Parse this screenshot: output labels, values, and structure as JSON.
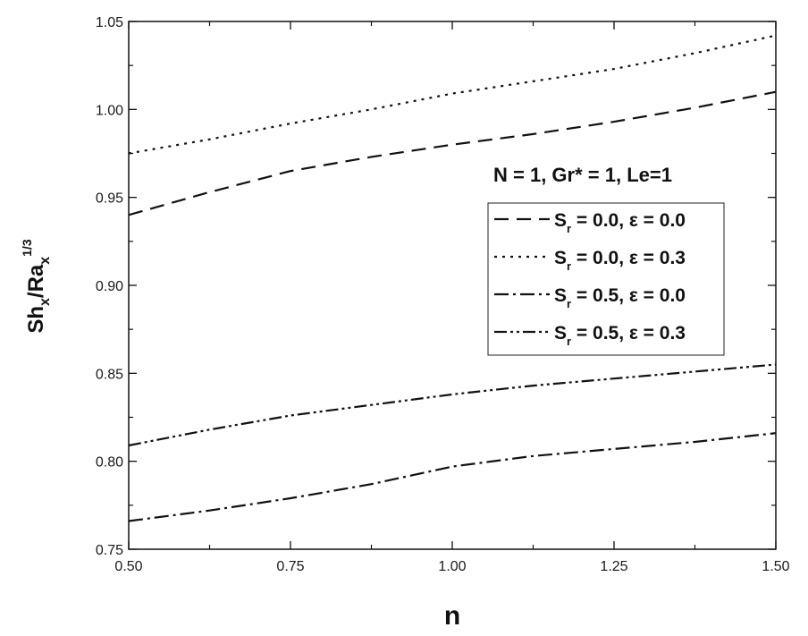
{
  "chart_data": {
    "type": "line",
    "title": "",
    "annotation": "N = 1, Gr* = 1, Le=1",
    "xlabel": "n",
    "ylabel": {
      "base1": "Sh",
      "sub1": "x",
      "slash": "/",
      "base2": "Ra",
      "sub2": "x",
      "sup2": "1/3"
    },
    "xlim": [
      0.5,
      1.5
    ],
    "ylim": [
      0.75,
      1.05
    ],
    "x_ticks": [
      "0.50",
      "0.75",
      "1.00",
      "1.25",
      "1.50"
    ],
    "y_ticks": [
      "0.75",
      "0.80",
      "0.85",
      "0.90",
      "0.95",
      "1.00",
      "1.05"
    ],
    "grid": false,
    "legend_position": "center-right",
    "x": [
      0.5,
      0.625,
      0.75,
      0.875,
      1.0,
      1.125,
      1.25,
      1.375,
      1.5
    ],
    "series": [
      {
        "name": {
          "a": "S",
          "sub": "r",
          "b": " = 0.0, ε = 0.0"
        },
        "style": "dash",
        "values": [
          0.94,
          0.953,
          0.965,
          0.973,
          0.98,
          0.986,
          0.993,
          1.001,
          1.01
        ]
      },
      {
        "name": {
          "a": "S",
          "sub": "r",
          "b": " = 0.0, ε = 0.3"
        },
        "style": "dot",
        "values": [
          0.975,
          0.983,
          0.992,
          1.0,
          1.009,
          1.016,
          1.023,
          1.032,
          1.042
        ]
      },
      {
        "name": {
          "a": "S",
          "sub": "r",
          "b": " = 0.5, ε = 0.0"
        },
        "style": "dash-dot",
        "values": [
          0.766,
          0.772,
          0.779,
          0.787,
          0.797,
          0.803,
          0.807,
          0.811,
          0.816
        ]
      },
      {
        "name": {
          "a": "S",
          "sub": "r",
          "b": " = 0.5, ε = 0.3"
        },
        "style": "dash-dot-dot",
        "values": [
          0.809,
          0.818,
          0.826,
          0.832,
          0.838,
          0.843,
          0.847,
          0.851,
          0.855
        ]
      }
    ]
  }
}
